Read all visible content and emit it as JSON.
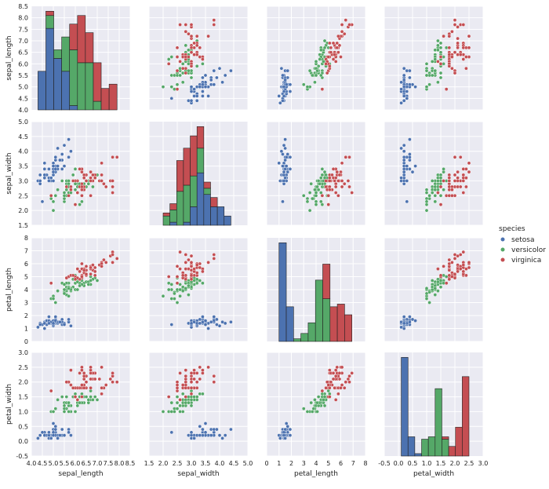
{
  "chart_data": {
    "type": "scatter",
    "title": "",
    "layout": "pairplot",
    "grid": true,
    "diagonal_type": "bar",
    "variables": [
      {
        "name": "sepal_length",
        "ticks": [
          4.0,
          4.5,
          5.0,
          5.5,
          6.0,
          6.5,
          7.0,
          7.5,
          8.0,
          8.5
        ],
        "tick_labels": [
          "4.0",
          "4.5",
          "5.0",
          "5.5",
          "6.0",
          "6.5",
          "7.0",
          "7.5",
          "8.0",
          "8.5"
        ],
        "lim": [
          4.0,
          8.5
        ]
      },
      {
        "name": "sepal_width",
        "ticks": [
          1.5,
          2.0,
          2.5,
          3.0,
          3.5,
          4.0,
          4.5,
          5.0
        ],
        "tick_labels": [
          "1.5",
          "2.0",
          "2.5",
          "3.0",
          "3.5",
          "4.0",
          "4.5",
          "5.0"
        ],
        "lim": [
          1.5,
          5.0
        ]
      },
      {
        "name": "petal_length",
        "ticks": [
          0,
          1,
          2,
          3,
          4,
          5,
          6,
          7,
          8
        ],
        "tick_labels": [
          "0",
          "1",
          "2",
          "3",
          "4",
          "5",
          "6",
          "7",
          "8"
        ],
        "lim": [
          0,
          8
        ]
      },
      {
        "name": "petal_width",
        "ticks": [
          -0.5,
          0.0,
          0.5,
          1.0,
          1.5,
          2.0,
          2.5,
          3.0
        ],
        "tick_labels": [
          "-0.5",
          "0.0",
          "0.5",
          "1.0",
          "1.5",
          "2.0",
          "2.5",
          "3.0"
        ],
        "lim": [
          -0.5,
          3.0
        ]
      }
    ],
    "legend": {
      "title": "species",
      "placement": "center-right",
      "entries": [
        {
          "name": "setosa",
          "color": "#4c72b0"
        },
        {
          "name": "versicolor",
          "color": "#55a868"
        },
        {
          "name": "virginica",
          "color": "#c44e52"
        }
      ]
    },
    "diagonal_histograms": [
      {
        "variable": "sepal_length",
        "bin_edges": [
          4.3,
          4.66,
          5.02,
          5.38,
          5.74,
          6.1,
          6.46,
          6.82,
          7.18,
          7.54,
          7.9
        ],
        "counts": {
          "setosa": [
            9,
            19,
            12,
            9,
            1,
            0,
            0,
            0,
            0,
            0
          ],
          "versicolor": [
            0,
            3,
            2,
            8,
            13,
            11,
            11,
            2,
            0,
            0
          ],
          "virginica": [
            0,
            1,
            0,
            0,
            6,
            11,
            7,
            9,
            5,
            6
          ]
        }
      },
      {
        "variable": "sepal_width",
        "bin_edges": [
          2.0,
          2.24,
          2.48,
          2.72,
          2.96,
          3.2,
          3.44,
          3.68,
          3.92,
          4.16,
          4.4
        ],
        "counts": {
          "setosa": [
            0,
            1,
            0,
            1,
            6,
            17,
            10,
            6,
            6,
            3
          ],
          "versicolor": [
            3,
            4,
            11,
            12,
            10,
            8,
            2,
            0,
            0,
            0
          ],
          "virginica": [
            1,
            2,
            10,
            12,
            13,
            7,
            2,
            3,
            0,
            0
          ]
        }
      },
      {
        "variable": "petal_length",
        "bin_edges": [
          1.0,
          1.59,
          2.18,
          2.77,
          3.36,
          3.95,
          4.54,
          5.13,
          5.72,
          6.31,
          6.9
        ],
        "counts": {
          "setosa": [
            37,
            13,
            0,
            0,
            0,
            0,
            0,
            0,
            0,
            0
          ],
          "versicolor": [
            0,
            0,
            1,
            3,
            7,
            23,
            16,
            0,
            0,
            0
          ],
          "virginica": [
            0,
            0,
            0,
            0,
            0,
            0,
            13,
            13,
            14,
            10
          ]
        }
      },
      {
        "variable": "petal_width",
        "bin_edges": [
          0.1,
          0.34,
          0.58,
          0.82,
          1.06,
          1.3,
          1.54,
          1.78,
          2.02,
          2.26,
          2.5
        ],
        "counts": {
          "setosa": [
            41,
            8,
            1,
            0,
            0,
            0,
            0,
            0,
            0,
            0
          ],
          "versicolor": [
            0,
            0,
            0,
            7,
            8,
            28,
            7,
            0,
            0,
            0
          ],
          "virginica": [
            0,
            0,
            0,
            0,
            0,
            0,
            1,
            4,
            12,
            33
          ]
        }
      }
    ],
    "series": [
      {
        "name": "setosa",
        "color": "#4c72b0",
        "points": [
          [
            5.1,
            3.5,
            1.4,
            0.2
          ],
          [
            4.9,
            3.0,
            1.4,
            0.2
          ],
          [
            4.7,
            3.2,
            1.3,
            0.2
          ],
          [
            4.6,
            3.1,
            1.5,
            0.2
          ],
          [
            5.0,
            3.6,
            1.4,
            0.2
          ],
          [
            5.4,
            3.9,
            1.7,
            0.4
          ],
          [
            4.6,
            3.4,
            1.4,
            0.3
          ],
          [
            5.0,
            3.4,
            1.5,
            0.2
          ],
          [
            4.4,
            2.9,
            1.4,
            0.2
          ],
          [
            4.9,
            3.1,
            1.5,
            0.1
          ],
          [
            5.4,
            3.7,
            1.5,
            0.2
          ],
          [
            4.8,
            3.4,
            1.6,
            0.2
          ],
          [
            4.8,
            3.0,
            1.4,
            0.1
          ],
          [
            4.3,
            3.0,
            1.1,
            0.1
          ],
          [
            5.8,
            4.0,
            1.2,
            0.2
          ],
          [
            5.7,
            4.4,
            1.5,
            0.4
          ],
          [
            5.4,
            3.9,
            1.3,
            0.4
          ],
          [
            5.1,
            3.5,
            1.4,
            0.3
          ],
          [
            5.7,
            3.8,
            1.7,
            0.3
          ],
          [
            5.1,
            3.8,
            1.5,
            0.3
          ],
          [
            5.4,
            3.4,
            1.7,
            0.2
          ],
          [
            5.1,
            3.7,
            1.5,
            0.4
          ],
          [
            4.6,
            3.6,
            1.0,
            0.2
          ],
          [
            5.1,
            3.3,
            1.7,
            0.5
          ],
          [
            4.8,
            3.4,
            1.9,
            0.2
          ],
          [
            5.0,
            3.0,
            1.6,
            0.2
          ],
          [
            5.0,
            3.4,
            1.6,
            0.4
          ],
          [
            5.2,
            3.5,
            1.5,
            0.2
          ],
          [
            5.2,
            3.4,
            1.4,
            0.2
          ],
          [
            4.7,
            3.2,
            1.6,
            0.2
          ],
          [
            4.8,
            3.1,
            1.6,
            0.2
          ],
          [
            5.4,
            3.4,
            1.5,
            0.4
          ],
          [
            5.2,
            4.1,
            1.5,
            0.1
          ],
          [
            5.5,
            4.2,
            1.4,
            0.2
          ],
          [
            4.9,
            3.1,
            1.5,
            0.1
          ],
          [
            5.0,
            3.2,
            1.2,
            0.2
          ],
          [
            5.5,
            3.5,
            1.3,
            0.2
          ],
          [
            4.9,
            3.1,
            1.5,
            0.1
          ],
          [
            4.4,
            3.0,
            1.3,
            0.2
          ],
          [
            5.1,
            3.4,
            1.5,
            0.2
          ],
          [
            5.0,
            3.5,
            1.3,
            0.3
          ],
          [
            4.5,
            2.3,
            1.3,
            0.3
          ],
          [
            4.4,
            3.2,
            1.3,
            0.2
          ],
          [
            5.0,
            3.5,
            1.6,
            0.6
          ],
          [
            5.1,
            3.8,
            1.9,
            0.4
          ],
          [
            4.8,
            3.0,
            1.4,
            0.3
          ],
          [
            5.1,
            3.8,
            1.6,
            0.2
          ],
          [
            4.6,
            3.2,
            1.4,
            0.2
          ],
          [
            5.3,
            3.7,
            1.5,
            0.2
          ],
          [
            5.0,
            3.3,
            1.4,
            0.2
          ]
        ]
      },
      {
        "name": "versicolor",
        "color": "#55a868",
        "points": [
          [
            7.0,
            3.2,
            4.7,
            1.4
          ],
          [
            6.4,
            3.2,
            4.5,
            1.5
          ],
          [
            6.9,
            3.1,
            4.9,
            1.5
          ],
          [
            5.5,
            2.3,
            4.0,
            1.3
          ],
          [
            6.5,
            2.8,
            4.6,
            1.5
          ],
          [
            5.7,
            2.8,
            4.5,
            1.3
          ],
          [
            6.3,
            3.3,
            4.7,
            1.6
          ],
          [
            4.9,
            2.4,
            3.3,
            1.0
          ],
          [
            6.6,
            2.9,
            4.6,
            1.3
          ],
          [
            5.2,
            2.7,
            3.9,
            1.4
          ],
          [
            5.0,
            2.0,
            3.5,
            1.0
          ],
          [
            5.9,
            3.0,
            4.2,
            1.5
          ],
          [
            6.0,
            2.2,
            4.0,
            1.0
          ],
          [
            6.1,
            2.9,
            4.7,
            1.4
          ],
          [
            5.6,
            2.9,
            3.6,
            1.3
          ],
          [
            6.7,
            3.1,
            4.4,
            1.4
          ],
          [
            5.6,
            3.0,
            4.5,
            1.5
          ],
          [
            5.8,
            2.7,
            4.1,
            1.0
          ],
          [
            6.2,
            2.2,
            4.5,
            1.5
          ],
          [
            5.6,
            2.5,
            3.9,
            1.1
          ],
          [
            5.9,
            3.2,
            4.8,
            1.8
          ],
          [
            6.1,
            2.8,
            4.0,
            1.3
          ],
          [
            6.3,
            2.5,
            4.9,
            1.5
          ],
          [
            6.1,
            2.8,
            4.7,
            1.2
          ],
          [
            6.4,
            2.9,
            4.3,
            1.3
          ],
          [
            6.6,
            3.0,
            4.4,
            1.4
          ],
          [
            6.8,
            2.8,
            4.8,
            1.4
          ],
          [
            6.7,
            3.0,
            5.0,
            1.7
          ],
          [
            6.0,
            2.9,
            4.5,
            1.5
          ],
          [
            5.7,
            2.6,
            3.5,
            1.0
          ],
          [
            5.5,
            2.4,
            3.8,
            1.1
          ],
          [
            5.5,
            2.4,
            3.7,
            1.0
          ],
          [
            5.8,
            2.7,
            3.9,
            1.2
          ],
          [
            6.0,
            2.7,
            5.1,
            1.6
          ],
          [
            5.4,
            3.0,
            4.5,
            1.5
          ],
          [
            6.0,
            3.4,
            4.5,
            1.6
          ],
          [
            6.7,
            3.1,
            4.7,
            1.5
          ],
          [
            6.3,
            2.3,
            4.4,
            1.3
          ],
          [
            5.6,
            3.0,
            4.1,
            1.3
          ],
          [
            5.5,
            2.5,
            4.0,
            1.3
          ],
          [
            5.5,
            2.6,
            4.4,
            1.2
          ],
          [
            6.1,
            3.0,
            4.6,
            1.4
          ],
          [
            5.8,
            2.6,
            4.0,
            1.2
          ],
          [
            5.0,
            2.3,
            3.3,
            1.0
          ],
          [
            5.6,
            2.7,
            4.2,
            1.3
          ],
          [
            5.7,
            3.0,
            4.2,
            1.2
          ],
          [
            5.7,
            2.9,
            4.2,
            1.3
          ],
          [
            6.2,
            2.9,
            4.3,
            1.3
          ],
          [
            5.1,
            2.5,
            3.0,
            1.1
          ],
          [
            5.7,
            2.8,
            4.1,
            1.3
          ]
        ]
      },
      {
        "name": "virginica",
        "color": "#c44e52",
        "points": [
          [
            6.3,
            3.3,
            6.0,
            2.5
          ],
          [
            5.8,
            2.7,
            5.1,
            1.9
          ],
          [
            7.1,
            3.0,
            5.9,
            2.1
          ],
          [
            6.3,
            2.9,
            5.6,
            1.8
          ],
          [
            6.5,
            3.0,
            5.8,
            2.2
          ],
          [
            7.6,
            3.0,
            6.6,
            2.1
          ],
          [
            4.9,
            2.5,
            4.5,
            1.7
          ],
          [
            7.3,
            2.9,
            6.3,
            1.8
          ],
          [
            6.7,
            2.5,
            5.8,
            1.8
          ],
          [
            7.2,
            3.6,
            6.1,
            2.5
          ],
          [
            6.5,
            3.2,
            5.1,
            2.0
          ],
          [
            6.4,
            2.7,
            5.3,
            1.9
          ],
          [
            6.8,
            3.0,
            5.5,
            2.1
          ],
          [
            5.7,
            2.5,
            5.0,
            2.0
          ],
          [
            5.8,
            2.8,
            5.1,
            2.4
          ],
          [
            6.4,
            3.2,
            5.3,
            2.3
          ],
          [
            6.5,
            3.0,
            5.5,
            1.8
          ],
          [
            7.7,
            3.8,
            6.7,
            2.2
          ],
          [
            7.7,
            2.6,
            6.9,
            2.3
          ],
          [
            6.0,
            2.2,
            5.0,
            1.5
          ],
          [
            6.9,
            3.2,
            5.7,
            2.3
          ],
          [
            5.6,
            2.8,
            4.9,
            2.0
          ],
          [
            7.7,
            2.8,
            6.7,
            2.0
          ],
          [
            6.3,
            2.7,
            4.9,
            1.8
          ],
          [
            6.7,
            3.3,
            5.7,
            2.1
          ],
          [
            7.2,
            3.2,
            6.0,
            1.8
          ],
          [
            6.2,
            2.8,
            4.8,
            1.8
          ],
          [
            6.1,
            3.0,
            4.9,
            1.8
          ],
          [
            6.4,
            2.8,
            5.6,
            2.1
          ],
          [
            7.2,
            3.0,
            5.8,
            1.6
          ],
          [
            7.4,
            2.8,
            6.1,
            1.9
          ],
          [
            7.9,
            3.8,
            6.4,
            2.0
          ],
          [
            6.4,
            2.8,
            5.6,
            2.2
          ],
          [
            6.3,
            2.8,
            5.1,
            1.5
          ],
          [
            6.1,
            2.6,
            5.6,
            1.4
          ],
          [
            7.7,
            3.0,
            6.1,
            2.3
          ],
          [
            6.3,
            3.4,
            5.6,
            2.4
          ],
          [
            6.4,
            3.1,
            5.5,
            1.8
          ],
          [
            6.0,
            3.0,
            4.8,
            1.8
          ],
          [
            6.9,
            3.1,
            5.4,
            2.1
          ],
          [
            6.7,
            3.1,
            5.6,
            2.4
          ],
          [
            6.9,
            3.1,
            5.1,
            2.3
          ],
          [
            5.8,
            2.7,
            5.1,
            1.9
          ],
          [
            6.8,
            3.2,
            5.9,
            2.3
          ],
          [
            6.7,
            3.3,
            5.7,
            2.5
          ],
          [
            6.7,
            3.0,
            5.2,
            2.3
          ],
          [
            6.3,
            2.5,
            5.0,
            1.9
          ],
          [
            6.5,
            3.0,
            5.2,
            2.0
          ],
          [
            6.2,
            3.4,
            5.4,
            2.3
          ],
          [
            5.9,
            3.0,
            5.1,
            1.8
          ]
        ]
      }
    ]
  }
}
